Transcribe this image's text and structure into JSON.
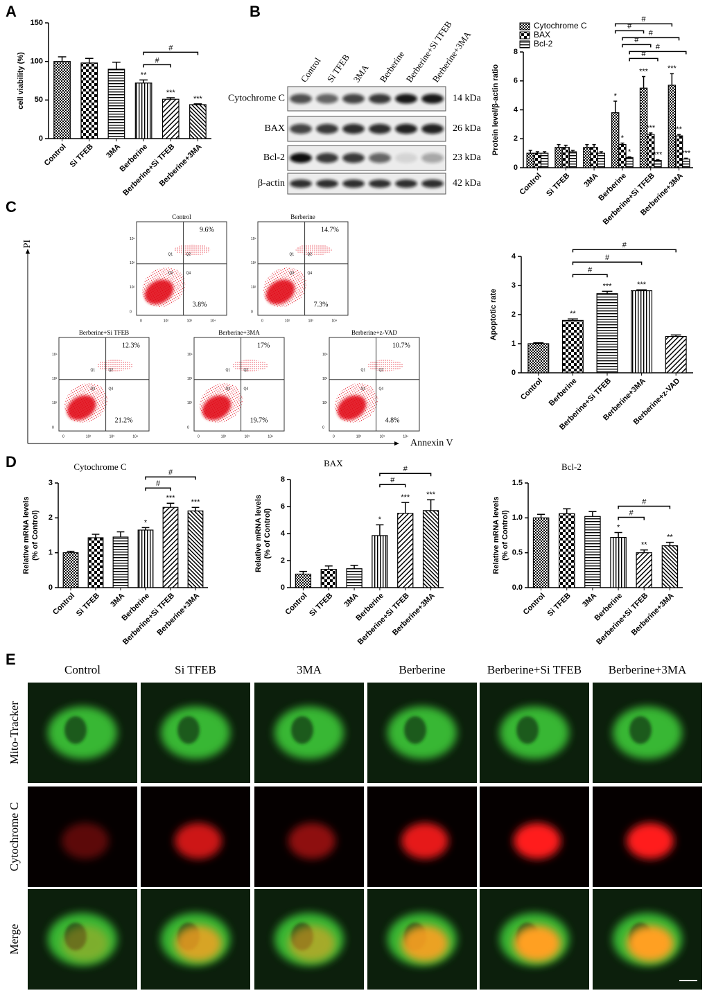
{
  "panel_letters": [
    "A",
    "B",
    "C",
    "D",
    "E"
  ],
  "chart_data": [
    {
      "type": "bar",
      "ylabel": [
        "cell viability (%)"
      ],
      "categories": [
        "Control",
        "Si TFEB",
        "3MA",
        "Berberine",
        "Berberine+Si TFEB",
        "Berberine+3MA"
      ],
      "values": [
        100,
        98,
        90,
        72,
        51,
        44
      ],
      "errors": [
        6,
        6,
        9,
        4,
        2,
        1
      ],
      "significance": [
        null,
        null,
        null,
        "**",
        "***",
        "***"
      ],
      "comparisons": [
        {
          "pair": [
            "Berberine",
            "Berberine+Si TFEB"
          ],
          "label": "#"
        },
        {
          "pair": [
            "Berberine",
            "Berberine+3MA"
          ],
          "label": "#"
        }
      ],
      "ylim": [
        0,
        150
      ],
      "yticks": [
        0,
        50,
        100,
        150
      ]
    },
    {
      "type": "bar",
      "ylabel": [
        "Protein level/β-actin ratio"
      ],
      "categories": [
        "Control",
        "Si TFEB",
        "3MA",
        "Berberine",
        "Berberine+Si TFEB",
        "Berberine+3MA"
      ],
      "series": [
        {
          "name": "Cytochrome C",
          "values": [
            1.0,
            1.4,
            1.4,
            3.8,
            5.5,
            5.7
          ],
          "errors": [
            0.2,
            0.2,
            0.2,
            0.8,
            0.8,
            0.8
          ],
          "significance": [
            null,
            null,
            null,
            "*",
            "***",
            "***"
          ]
        },
        {
          "name": "BAX",
          "values": [
            1.0,
            1.4,
            1.4,
            1.6,
            2.3,
            2.2
          ],
          "errors": [
            0.1,
            0.15,
            0.2,
            0.1,
            0.1,
            0.1
          ],
          "significance": [
            null,
            null,
            null,
            "*",
            "***",
            "**"
          ]
        },
        {
          "name": "Bcl-2",
          "values": [
            1.0,
            1.1,
            1.0,
            0.7,
            0.5,
            0.6
          ],
          "errors": [
            0.1,
            0.1,
            0.1,
            0.05,
            0.05,
            0.05
          ],
          "significance": [
            null,
            null,
            null,
            "*",
            "***",
            "***"
          ]
        }
      ],
      "comparisons": [
        {
          "series": "Bcl-2",
          "pair": [
            "Berberine",
            "Berberine+Si TFEB"
          ],
          "label": "#"
        },
        {
          "series": "Bcl-2",
          "pair": [
            "Berberine",
            "Berberine+3MA"
          ],
          "label": "#"
        },
        {
          "series": "BAX",
          "pair": [
            "Berberine",
            "Berberine+Si TFEB"
          ],
          "label": "#"
        },
        {
          "series": "BAX",
          "pair": [
            "Berberine",
            "Berberine+3MA"
          ],
          "label": "#"
        },
        {
          "series": "Cytochrome C",
          "pair": [
            "Berberine",
            "Berberine+Si TFEB"
          ],
          "label": "#"
        },
        {
          "series": "Cytochrome C",
          "pair": [
            "Berberine",
            "Berberine+3MA"
          ],
          "label": "#"
        }
      ],
      "legend": "top-left",
      "ylim": [
        0,
        8
      ],
      "yticks": [
        0,
        2,
        4,
        6,
        8
      ]
    },
    {
      "type": "bar",
      "ylabel": [
        "Apoptotic rate"
      ],
      "categories": [
        "Control",
        "Berberine",
        "Berberine+Si TFEB",
        "Berberine+3MA",
        "Berberine+z-VAD"
      ],
      "values": [
        1.0,
        1.8,
        2.72,
        2.82,
        1.25
      ],
      "errors": [
        0.03,
        0.05,
        0.08,
        0.03,
        0.05
      ],
      "significance": [
        null,
        "**",
        "***",
        "***",
        null
      ],
      "comparisons": [
        {
          "pair": [
            "Berberine",
            "Berberine+Si TFEB"
          ],
          "label": "#"
        },
        {
          "pair": [
            "Berberine",
            "Berberine+3MA"
          ],
          "label": "#"
        },
        {
          "pair": [
            "Berberine",
            "Berberine+z-VAD"
          ],
          "label": "#"
        }
      ],
      "ylim": [
        0,
        4
      ],
      "yticks": [
        0,
        1,
        2,
        3,
        4
      ]
    },
    {
      "type": "bar",
      "title": "Cytochrome C",
      "ylabel": [
        "Relative mRNA levels",
        "(% of Control)"
      ],
      "categories": [
        "Control",
        "Si TFEB",
        "3MA",
        "Berberine",
        "Berberine+Si TFEB",
        "Berberine+3MA"
      ],
      "values": [
        1.0,
        1.43,
        1.45,
        1.65,
        2.3,
        2.2
      ],
      "errors": [
        0.04,
        0.1,
        0.15,
        0.07,
        0.12,
        0.1
      ],
      "significance": [
        null,
        null,
        null,
        "*",
        "***",
        "***"
      ],
      "comparisons": [
        {
          "pair": [
            "Berberine",
            "Berberine+Si TFEB"
          ],
          "label": "#"
        },
        {
          "pair": [
            "Berberine",
            "Berberine+3MA"
          ],
          "label": "#"
        }
      ],
      "ylim": [
        0,
        3
      ],
      "yticks": [
        0,
        1,
        2,
        3
      ]
    },
    {
      "type": "bar",
      "title": "BAX",
      "ylabel": [
        "Relative mRNA levels",
        "(% of Control)"
      ],
      "categories": [
        "Control",
        "Si TFEB",
        "3MA",
        "Berberine",
        "Berberine+Si TFEB",
        "Berberine+3MA"
      ],
      "values": [
        1.0,
        1.35,
        1.4,
        3.85,
        5.5,
        5.7
      ],
      "errors": [
        0.2,
        0.25,
        0.25,
        0.8,
        0.8,
        0.8
      ],
      "significance": [
        null,
        null,
        null,
        "*",
        "***",
        "***"
      ],
      "comparisons": [
        {
          "pair": [
            "Berberine",
            "Berberine+Si TFEB"
          ],
          "label": "#"
        },
        {
          "pair": [
            "Berberine",
            "Berberine+3MA"
          ],
          "label": "#"
        }
      ],
      "ylim": [
        0,
        8
      ],
      "yticks": [
        0,
        2,
        4,
        6,
        8
      ]
    },
    {
      "type": "bar",
      "title": "Bcl-2",
      "ylabel": [
        "Relative mRNA levels",
        "(% of Control)"
      ],
      "categories": [
        "Control",
        "Si TFEB",
        "3MA",
        "Berberine",
        "Berberine+Si TFEB",
        "Berberine+3MA"
      ],
      "values": [
        1.0,
        1.06,
        1.02,
        0.72,
        0.5,
        0.6
      ],
      "errors": [
        0.05,
        0.07,
        0.07,
        0.07,
        0.04,
        0.05
      ],
      "significance": [
        null,
        null,
        null,
        "*",
        "**",
        "**"
      ],
      "comparisons": [
        {
          "pair": [
            "Berberine",
            "Berberine+Si TFEB"
          ],
          "label": "#"
        },
        {
          "pair": [
            "Berberine",
            "Berberine+3MA"
          ],
          "label": "#"
        }
      ],
      "ylim": [
        0,
        1.5
      ],
      "yticks": [
        {
          "value": 0,
          "label": "0.0"
        },
        0.5,
        {
          "value": 1,
          "label": "1.0"
        },
        1.5
      ]
    }
  ],
  "western_blot": {
    "lanes": [
      "Control",
      "Si TFEB",
      "3MA",
      "Berberine",
      "Berberine+Si TFEB",
      "Berberine+3MA"
    ],
    "proteins": [
      {
        "name": "Cytochrome C",
        "size": "14 kDa"
      },
      {
        "name": "BAX",
        "size": "26 kDa"
      },
      {
        "name": "Bcl-2",
        "size": "23 kDa"
      },
      {
        "name": "β-actin",
        "size": "42 kDa"
      }
    ]
  },
  "flow_cytometry": {
    "y_label": "PI",
    "x_label": "Annexin V",
    "quadrants": [
      "Q1",
      "Q2",
      "Q3",
      "Q4"
    ],
    "axis_ticks": [
      "0",
      "10²",
      "10³",
      "10⁴"
    ],
    "plots": [
      {
        "title": "Control",
        "upper_right": "9.6%",
        "lower_right": "3.8%"
      },
      {
        "title": "Berberine",
        "upper_right": "14.7%",
        "lower_right": "7.3%"
      },
      {
        "title": "Berberine+Si TFEB",
        "upper_right": "12.3%",
        "lower_right": "21.2%"
      },
      {
        "title": "Berberine+3MA",
        "upper_right": "17%",
        "lower_right": "19.7%"
      },
      {
        "title": "Berberine+z-VAD",
        "upper_right": "10.7%",
        "lower_right": "4.8%"
      }
    ]
  },
  "microscopy": {
    "columns": [
      "Control",
      "Si TFEB",
      "3MA",
      "Berberine",
      "Berberine+Si TFEB",
      "Berberine+3MA"
    ],
    "rows": [
      "Mito-Tracker",
      "Cytochrome C",
      "Merge"
    ]
  }
}
